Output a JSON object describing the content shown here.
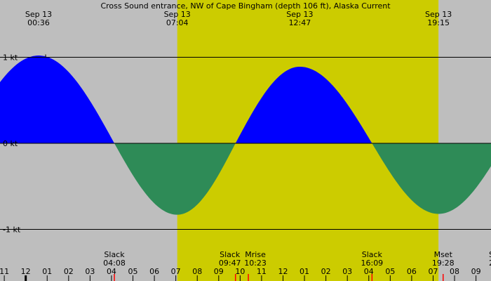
{
  "chart_data": {
    "type": "area",
    "title": "Cross Sound entrance, NW of Cape Bingham (depth 106 ft), Alaska Current",
    "ylim": [
      -1.25,
      1.6
    ],
    "y_ticks": [
      {
        "value": 1,
        "label": "1 kt"
      },
      {
        "value": 0,
        "label": "0 kt"
      },
      {
        "value": -1,
        "label": "-1 kt"
      }
    ],
    "x_range_hours": [
      -1.2,
      21.7
    ],
    "hour_ticks": [
      {
        "t": -1,
        "label": "11"
      },
      {
        "t": 0,
        "label": "12"
      },
      {
        "t": 1,
        "label": "01"
      },
      {
        "t": 2,
        "label": "02"
      },
      {
        "t": 3,
        "label": "03"
      },
      {
        "t": 4,
        "label": "04"
      },
      {
        "t": 5,
        "label": "05"
      },
      {
        "t": 6,
        "label": "06"
      },
      {
        "t": 7,
        "label": "07"
      },
      {
        "t": 8,
        "label": "08"
      },
      {
        "t": 9,
        "label": "09"
      },
      {
        "t": 10,
        "label": "10"
      },
      {
        "t": 11,
        "label": "11"
      },
      {
        "t": 12,
        "label": "12"
      },
      {
        "t": 13,
        "label": "01"
      },
      {
        "t": 14,
        "label": "02"
      },
      {
        "t": 15,
        "label": "03"
      },
      {
        "t": 16,
        "label": "04"
      },
      {
        "t": 17,
        "label": "05"
      },
      {
        "t": 18,
        "label": "06"
      },
      {
        "t": 19,
        "label": "07"
      },
      {
        "t": 20,
        "label": "08"
      },
      {
        "t": 21,
        "label": "09"
      }
    ],
    "daylight": {
      "start": 7.067,
      "end": 19.25
    },
    "extremes": [
      {
        "t": 0.6,
        "date": "Sep 13",
        "time": "00:36",
        "value": 1.02
      },
      {
        "t": 7.067,
        "date": "Sep 13",
        "time": "07:04",
        "value": -0.83
      },
      {
        "t": 12.783,
        "date": "Sep 13",
        "time": "12:47",
        "value": 0.89
      },
      {
        "t": 19.25,
        "date": "Sep 13",
        "time": "19:15",
        "value": -0.82
      }
    ],
    "events": [
      {
        "t": 4.133,
        "name": "Slack",
        "time": "04:08"
      },
      {
        "t": 9.783,
        "name": "Slack",
        "time": "09:47"
      },
      {
        "t": 10.383,
        "name": "Mrise",
        "time": "10:23"
      },
      {
        "t": 16.15,
        "name": "Slack",
        "time": "16:09"
      },
      {
        "t": 19.467,
        "name": "Mset",
        "time": "19:28"
      }
    ],
    "partial_label": {
      "name": "S",
      "time": "2"
    },
    "colors": {
      "night_bg": "#bebebe",
      "day_bg": "#cccc00",
      "flood": "#0000ff",
      "ebb": "#2e8b57",
      "marker": "#ff0000"
    }
  }
}
